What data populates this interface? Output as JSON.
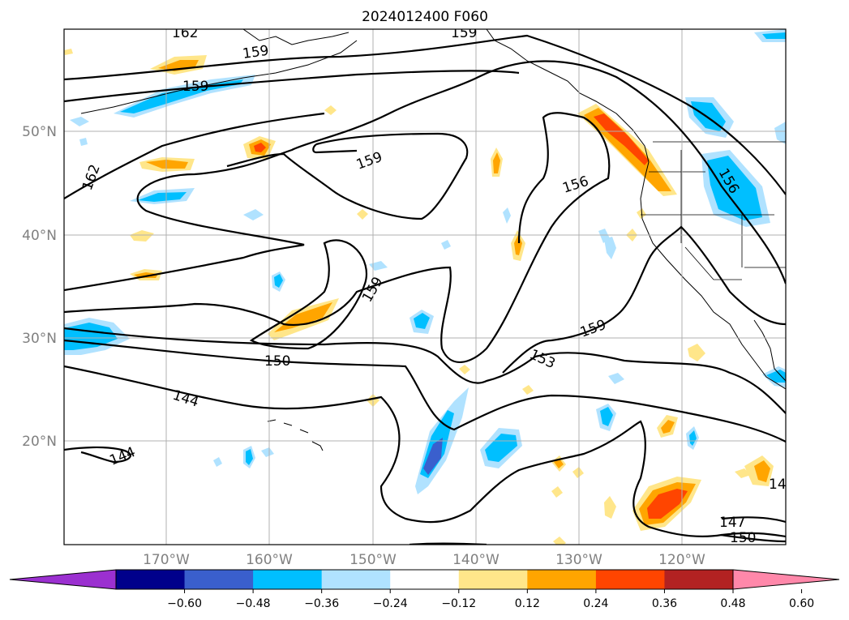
{
  "title": "2024012400 F060",
  "longitude_labels": [
    "170°W",
    "160°W",
    "150°W",
    "140°W",
    "130°W",
    "120°W"
  ],
  "latitude_labels": [
    "50°N",
    "40°N",
    "30°N",
    "20°N"
  ],
  "colorbar": {
    "ticks": [
      "−0.60",
      "−0.48",
      "−0.36",
      "−0.24",
      "−0.12",
      "0.12",
      "0.24",
      "0.36",
      "0.48",
      "0.60"
    ],
    "colors": [
      "#9b30d0",
      "#00008b",
      "#3a5fcd",
      "#00bfff",
      "#b0e2ff",
      "#ffffff",
      "#ffe68a",
      "#ffa500",
      "#ff4500",
      "#b22222",
      "#ff88aa"
    ]
  },
  "contour_labels": [
    "162",
    "159",
    "159",
    "159",
    "162",
    "159",
    "156",
    "156",
    "159",
    "159",
    "150",
    "153",
    "144",
    "144",
    "147",
    "150",
    "14"
  ]
}
